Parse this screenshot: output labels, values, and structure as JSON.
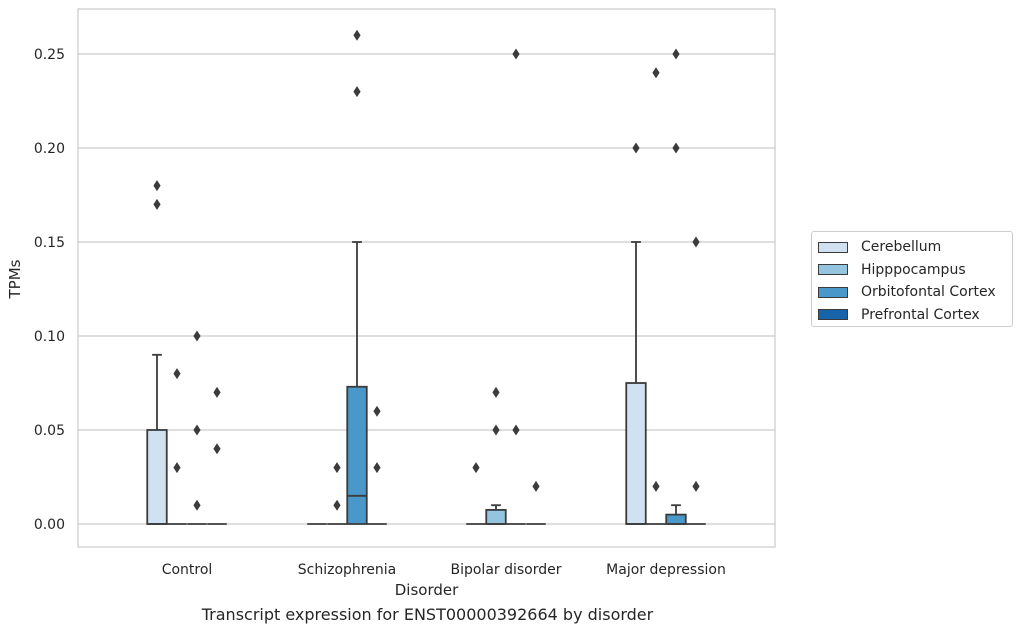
{
  "chart_data": {
    "type": "box",
    "title": "Transcript expression for ENST00000392664 by disorder",
    "xlabel": "Disorder",
    "ylabel": "TPMs",
    "ylim": [
      -0.0125,
      0.2735
    ],
    "yticks": [
      0.0,
      0.05,
      0.1,
      0.15,
      0.2,
      0.25
    ],
    "ytick_labels": [
      "0.00",
      "0.05",
      "0.10",
      "0.15",
      "0.20",
      "0.25"
    ],
    "categories": [
      "Control",
      "Schizophrenia",
      "Bipolar disorder",
      "Major depression"
    ],
    "grid": "horizontal",
    "legend_position": "right",
    "series": [
      {
        "name": "Cerebellum",
        "color": "#d0e1f2"
      },
      {
        "name": "Hipppocampus",
        "color": "#94c4df"
      },
      {
        "name": "Orbitofontal Cortex",
        "color": "#4a98c9"
      },
      {
        "name": "Prefrontal Cortex",
        "color": "#1764ab"
      }
    ],
    "boxes": [
      [
        {
          "min": 0,
          "q1": 0,
          "median": 0,
          "q3": 0.05,
          "max": 0.09,
          "outliers": [
            0.17,
            0.18
          ]
        },
        {
          "min": 0,
          "q1": 0,
          "median": 0,
          "q3": 0,
          "max": 0,
          "outliers": [
            0.03,
            0.08
          ]
        },
        {
          "min": 0,
          "q1": 0,
          "median": 0,
          "q3": 0,
          "max": 0,
          "outliers": [
            0.01,
            0.05,
            0.1
          ]
        },
        {
          "min": 0,
          "q1": 0,
          "median": 0,
          "q3": 0,
          "max": 0,
          "outliers": [
            0.04,
            0.07
          ]
        }
      ],
      [
        {
          "min": 0,
          "q1": 0,
          "median": 0,
          "q3": 0,
          "max": 0,
          "outliers": []
        },
        {
          "min": 0,
          "q1": 0,
          "median": 0,
          "q3": 0,
          "max": 0,
          "outliers": [
            0.01,
            0.03
          ]
        },
        {
          "min": 0,
          "q1": 0,
          "median": 0.015,
          "q3": 0.073,
          "max": 0.15,
          "outliers": [
            0.23,
            0.26
          ]
        },
        {
          "min": 0,
          "q1": 0,
          "median": 0,
          "q3": 0,
          "max": 0,
          "outliers": [
            0.03,
            0.06
          ]
        }
      ],
      [
        {
          "min": 0,
          "q1": 0,
          "median": 0,
          "q3": 0,
          "max": 0,
          "outliers": [
            0.03
          ]
        },
        {
          "min": 0,
          "q1": 0,
          "median": 0,
          "q3": 0.0075,
          "max": 0.01,
          "outliers": [
            0.05,
            0.07
          ]
        },
        {
          "min": 0,
          "q1": 0,
          "median": 0,
          "q3": 0,
          "max": 0,
          "outliers": [
            0.05,
            0.25
          ]
        },
        {
          "min": 0,
          "q1": 0,
          "median": 0,
          "q3": 0,
          "max": 0,
          "outliers": [
            0.02
          ]
        }
      ],
      [
        {
          "min": 0,
          "q1": 0,
          "median": 0,
          "q3": 0.075,
          "max": 0.15,
          "outliers": [
            0.2
          ]
        },
        {
          "min": 0,
          "q1": 0,
          "median": 0,
          "q3": 0,
          "max": 0,
          "outliers": [
            0.02,
            0.24
          ]
        },
        {
          "min": 0,
          "q1": 0,
          "median": 0,
          "q3": 0.005,
          "max": 0.01,
          "outliers": [
            0.2,
            0.25
          ]
        },
        {
          "min": 0,
          "q1": 0,
          "median": 0,
          "q3": 0,
          "max": 0,
          "outliers": [
            0.02,
            0.15
          ]
        }
      ]
    ]
  }
}
